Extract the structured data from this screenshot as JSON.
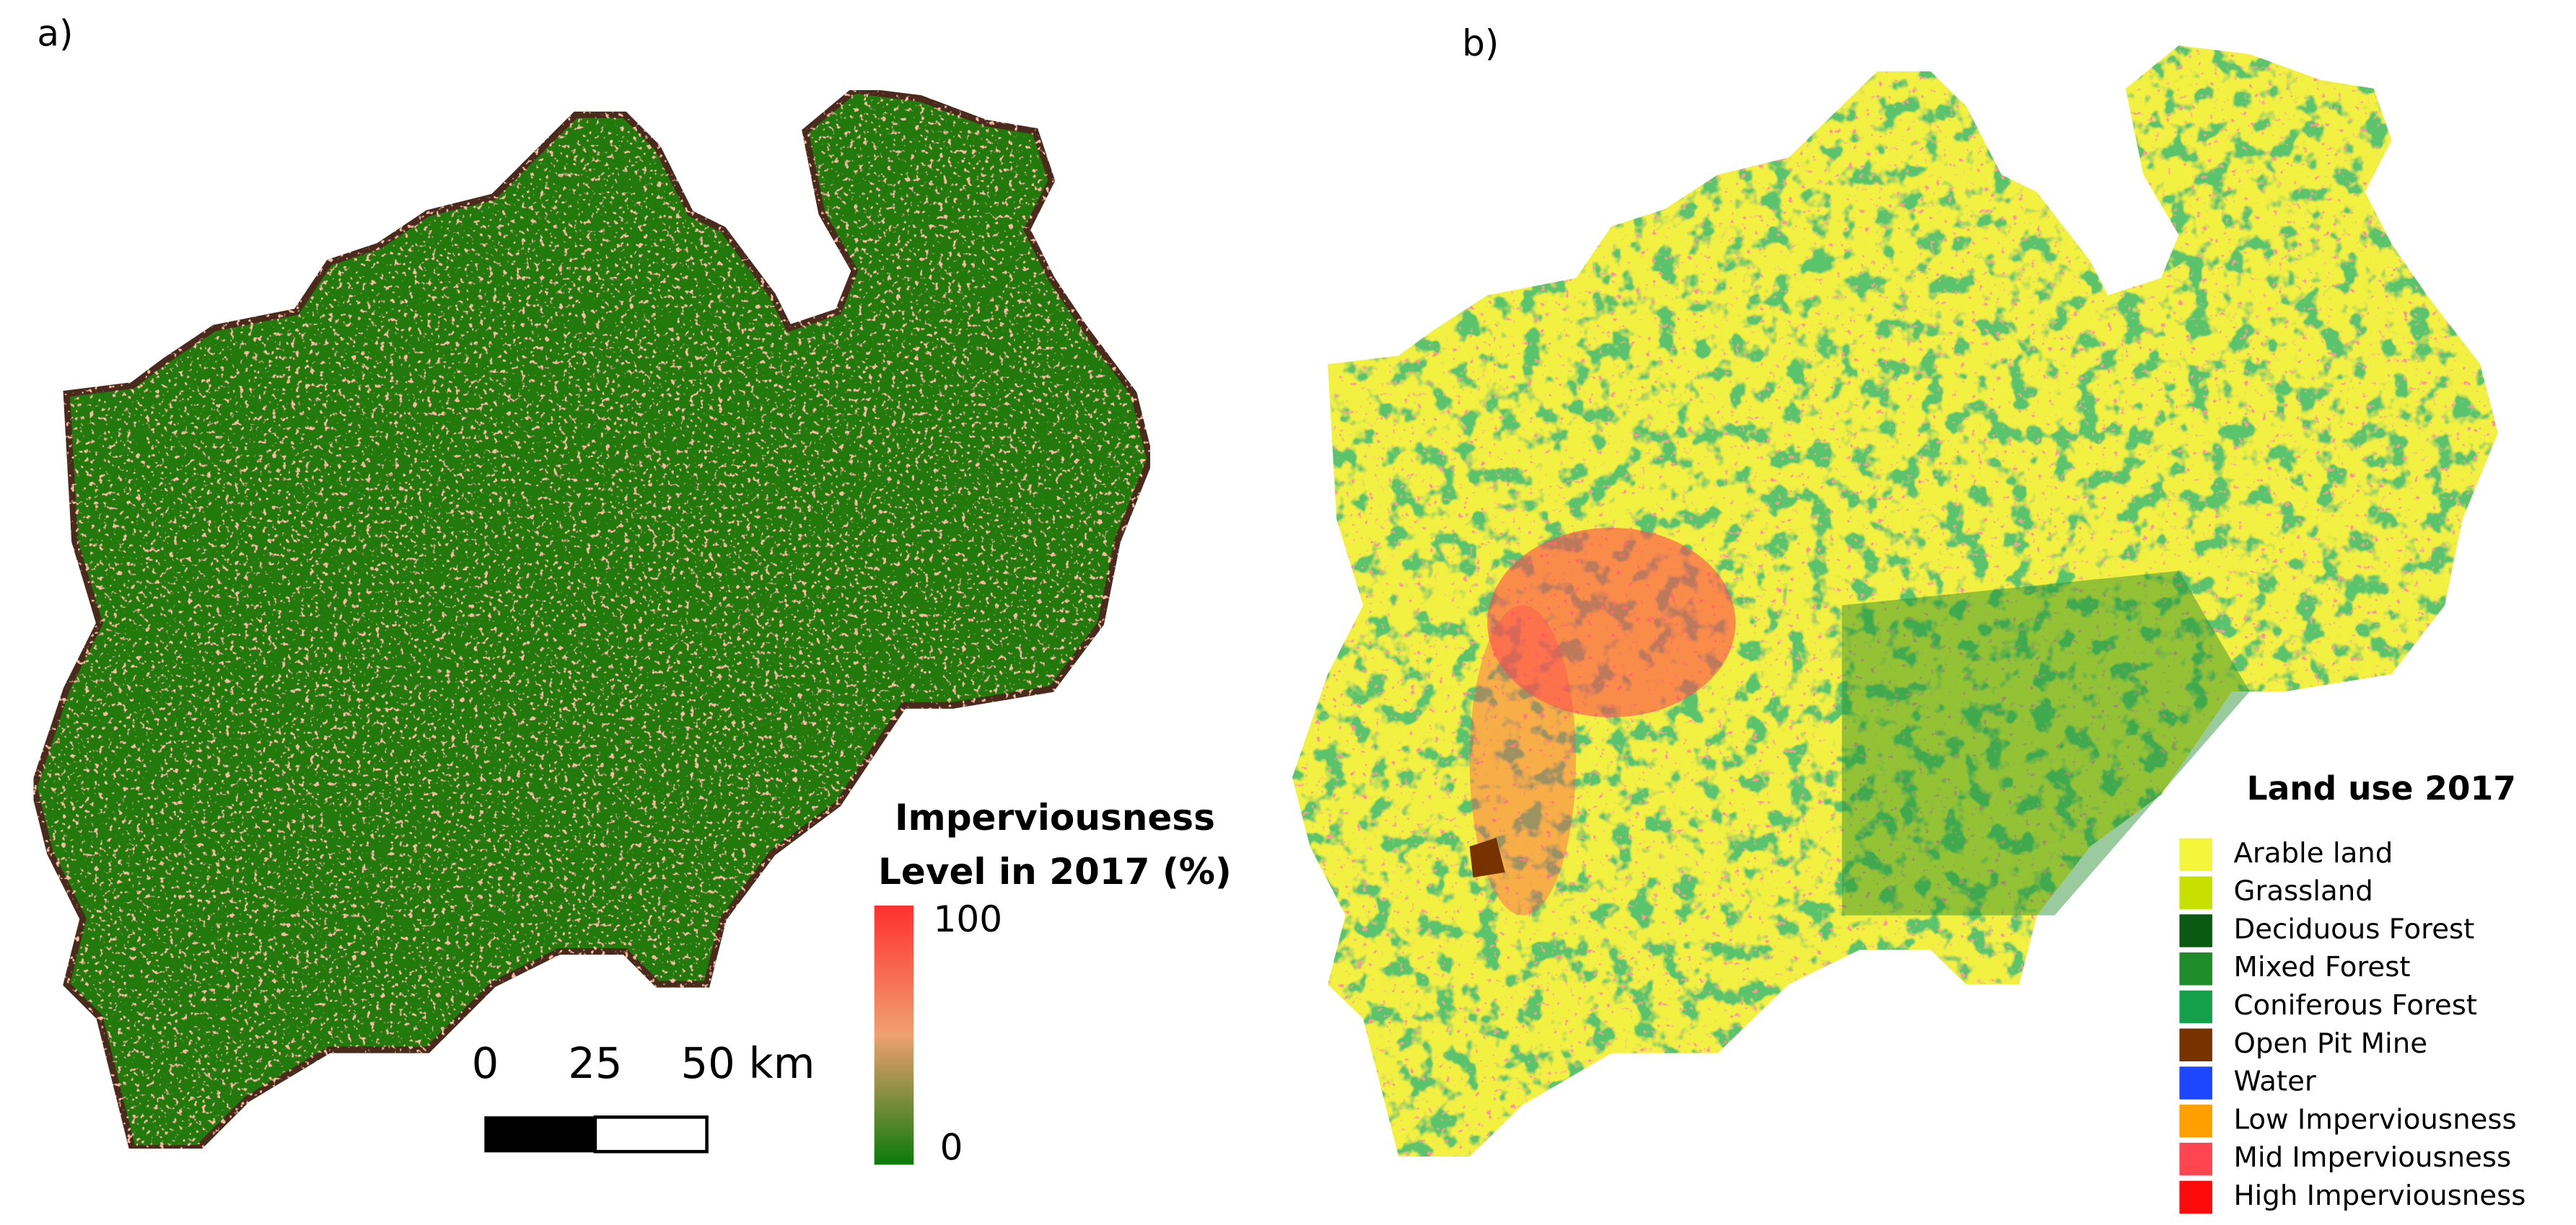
{
  "panels": [
    {
      "label": "a)",
      "legend": {
        "title_lines": [
          "Imperviousness",
          "Level in 2017 (%)"
        ],
        "max_label": "100",
        "min_label": "0"
      },
      "scale_bar": {
        "labels": [
          "0",
          "25",
          "50 km"
        ]
      }
    },
    {
      "label": "b)",
      "legend": {
        "title": "Land use 2017",
        "items": [
          {
            "label": "Arable land",
            "color": "#f5f53c"
          },
          {
            "label": "Grassland",
            "color": "#c8e000"
          },
          {
            "label": "Deciduous Forest",
            "color": "#0a5a14"
          },
          {
            "label": "Mixed Forest",
            "color": "#1e8c28"
          },
          {
            "label": "Coniferous Forest",
            "color": "#14a04a"
          },
          {
            "label": "Open Pit Mine",
            "color": "#783200"
          },
          {
            "label": "Water",
            "color": "#1e46ff"
          },
          {
            "label": "Low Imperviousness",
            "color": "#ffa000"
          },
          {
            "label": "Mid  Imperviousness",
            "color": "#ff4650"
          },
          {
            "label": "High Imperviousness",
            "color": "#ff0a0a"
          }
        ]
      }
    }
  ]
}
